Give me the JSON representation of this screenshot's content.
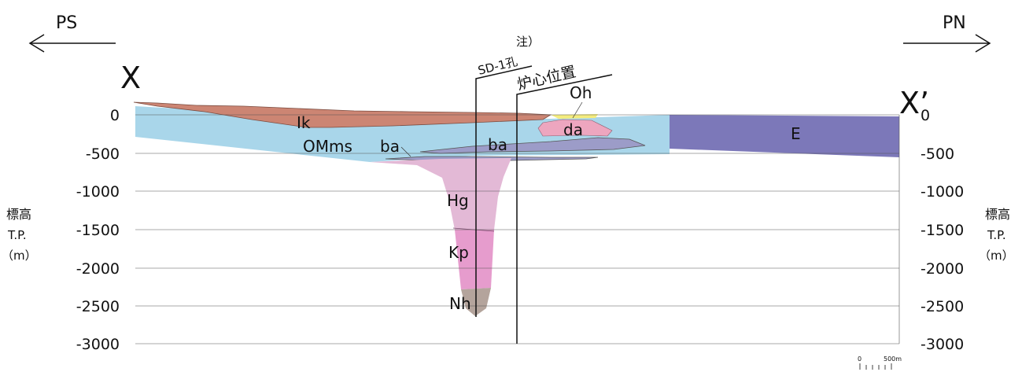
{
  "directions": {
    "left": "PS",
    "right": "PN"
  },
  "section": {
    "start": "X",
    "end": "X’"
  },
  "axis": {
    "title": "標高",
    "datum": "T.P.",
    "unit": "（m）",
    "ticks": [
      "0",
      "-500",
      "-1000",
      "-1500",
      "-2000",
      "-2500",
      "-3000"
    ],
    "ymin": -3000,
    "ymax": 0,
    "grid": true
  },
  "markers": {
    "borehole": {
      "label": "SD-1孔",
      "note": "注）"
    },
    "core": {
      "label": "炉心位置"
    }
  },
  "units": {
    "Ik": {
      "label": "Ik",
      "color": "#cc8573"
    },
    "OMms": {
      "label": "OMms",
      "color": "#a9d6ea"
    },
    "ba": {
      "label": "ba",
      "color": "#9c9cc8"
    },
    "da": {
      "label": "da",
      "color": "#eda6bf"
    },
    "Oh": {
      "label": "Oh",
      "color": "#f4ec7d"
    },
    "E": {
      "label": "E",
      "color": "#7c78b9"
    },
    "Hg": {
      "label": "Hg",
      "color": "#e3b9d6"
    },
    "Kp": {
      "label": "Kp",
      "color": "#e69ccd"
    },
    "Nh": {
      "label": "Nh",
      "color": "#b4a49c"
    }
  },
  "scale_bar": {
    "zero": "0",
    "max": "500m"
  }
}
